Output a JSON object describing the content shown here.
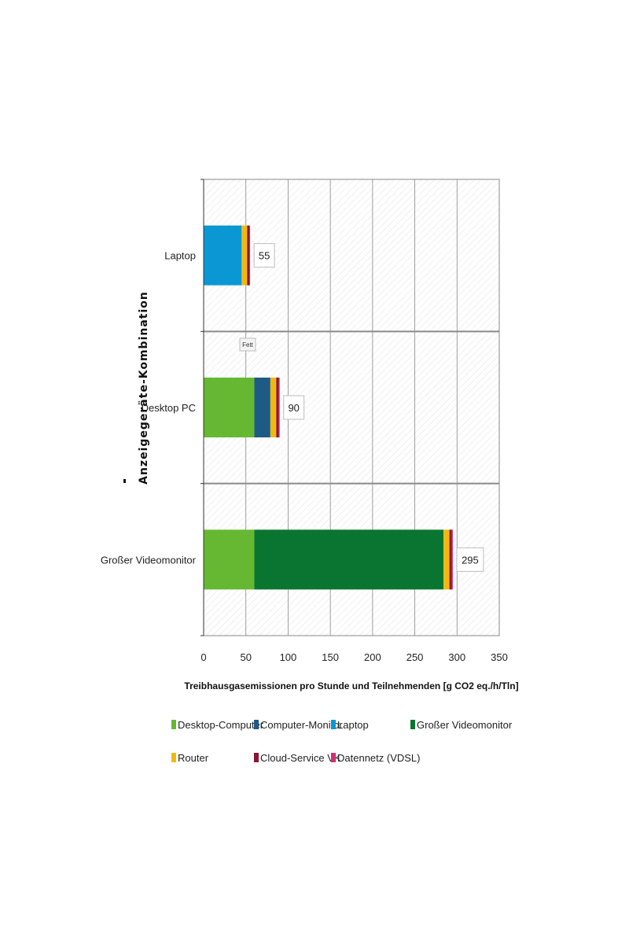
{
  "chart_data": {
    "type": "bar",
    "orientation": "horizontal",
    "stacked": true,
    "categories": [
      "Laptop",
      "Desktop PC",
      "Großer Videomonitor"
    ],
    "series": [
      {
        "name": "Desktop-Computer",
        "color": "#66b832",
        "values": [
          0,
          60,
          60
        ]
      },
      {
        "name": "Computer-Monitor",
        "color": "#1d5b86",
        "values": [
          0,
          19,
          0
        ]
      },
      {
        "name": "Laptop",
        "color": "#0a97d4",
        "values": [
          45,
          0,
          0
        ]
      },
      {
        "name": "Großer Videomonitor",
        "color": "#0a7530",
        "values": [
          0,
          0,
          224
        ]
      },
      {
        "name": "Router",
        "color": "#f2b80f",
        "values": [
          6.5,
          7,
          7
        ]
      },
      {
        "name": "Cloud-Service VK",
        "color": "#8a1534",
        "values": [
          2.5,
          3,
          3
        ]
      },
      {
        "name": "Datennetz (VDSL)",
        "color": "#d22f74",
        "values": [
          1,
          1,
          1
        ]
      }
    ],
    "totals": [
      "55",
      "90",
      "295"
    ],
    "xlabel": "Treibhausgasemissionen pro Stunde und Teilnehmenden [g CO2 eq./h/Tln]",
    "ylabel": "Anzeigegeräte-Kombination",
    "xlim": [
      0,
      350
    ],
    "xticks": [
      "0",
      "50",
      "100",
      "150",
      "200",
      "250",
      "300",
      "350"
    ],
    "grid": true,
    "legend_position": "bottom",
    "annotation": "Fett"
  }
}
